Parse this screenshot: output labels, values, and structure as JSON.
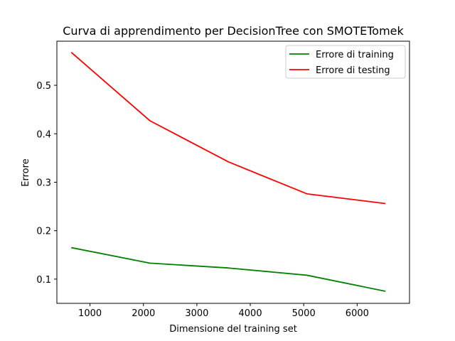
{
  "chart_data": {
    "type": "line",
    "title": "Curva di apprendimento per DecisionTree con SMOTETomek",
    "xlabel": "Dimensione del training set",
    "ylabel": "Errore",
    "x": [
      650,
      2120,
      3590,
      5060,
      6530
    ],
    "xlim": [
      380,
      6980
    ],
    "ylim": [
      0.05,
      0.591
    ],
    "xticks": [
      1000,
      2000,
      3000,
      4000,
      5000,
      6000
    ],
    "yticks": [
      0.1,
      0.2,
      0.3,
      0.4,
      0.5
    ],
    "grid": false,
    "legend_position": "upper right",
    "series": [
      {
        "name": "Errore di training",
        "color": "#008000",
        "values": [
          0.165,
          0.133,
          0.123,
          0.108,
          0.075
        ]
      },
      {
        "name": "Errore di testing",
        "color": "#ff0000",
        "values": [
          0.568,
          0.427,
          0.342,
          0.276,
          0.256
        ]
      }
    ]
  }
}
